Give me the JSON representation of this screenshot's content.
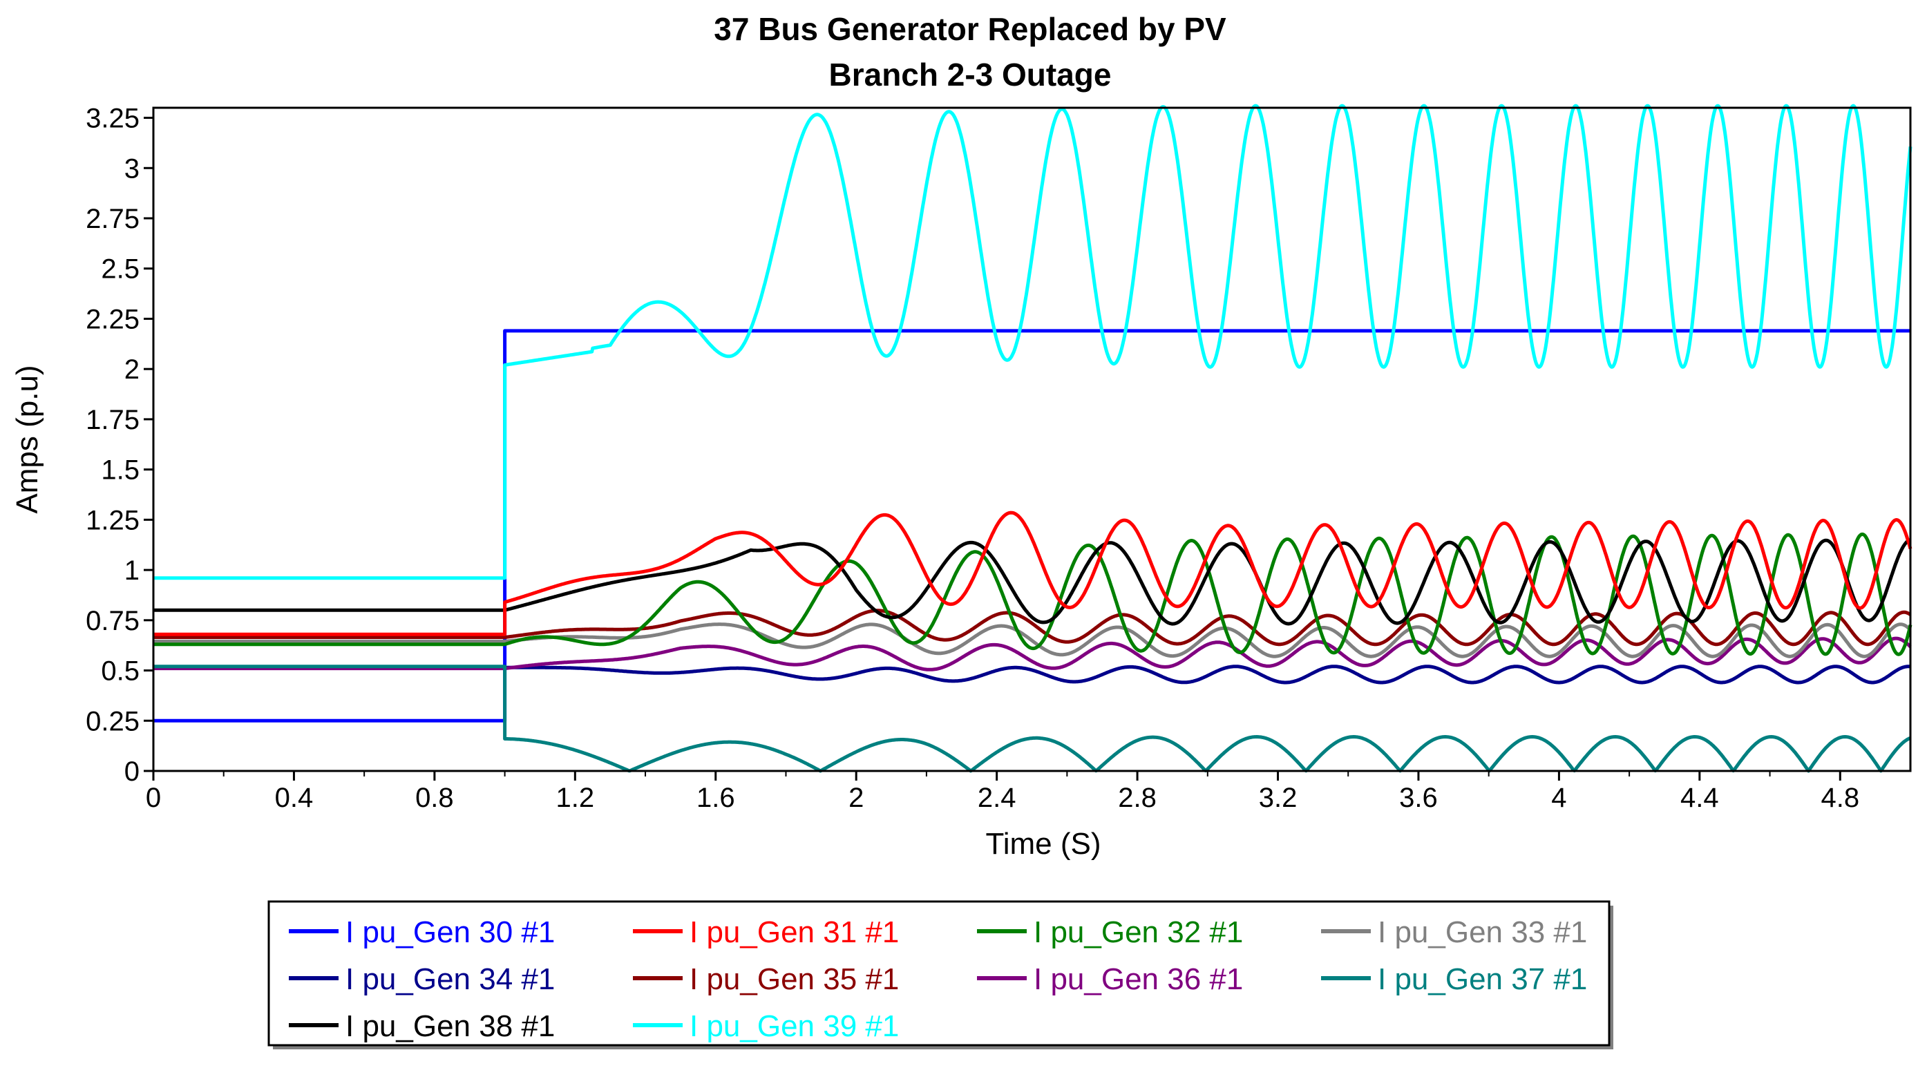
{
  "chart_data": {
    "type": "line",
    "title": [
      "37 Bus Generator Replaced by PV",
      "Branch 2-3 Outage"
    ],
    "xlabel": "Time (S)",
    "ylabel": "Amps (p.u)",
    "xlim": [
      0,
      5
    ],
    "ylim": [
      0,
      3.3
    ],
    "xticks": [
      0,
      0.4,
      0.8,
      1.2,
      1.6,
      2,
      2.4,
      2.8,
      3.2,
      3.6,
      4,
      4.4,
      4.8
    ],
    "xtick_labels": [
      "0",
      "0.4",
      "0.8",
      "1.2",
      "1.6",
      "2",
      "2.4",
      "2.8",
      "3.2",
      "3.6",
      "4",
      "4.4",
      "4.8"
    ],
    "yticks": [
      0,
      0.25,
      0.5,
      0.75,
      1,
      1.25,
      1.5,
      1.75,
      2,
      2.25,
      2.5,
      2.75,
      3,
      3.25
    ],
    "ytick_labels": [
      "0",
      "0.25",
      "0.5",
      "0.75",
      "1",
      "1.25",
      "1.5",
      "1.75",
      "2",
      "2.25",
      "2.5",
      "2.75",
      "3",
      "3.25"
    ],
    "grid": false,
    "legend_position": "bottom",
    "disturbance_time": 1.0,
    "series": [
      {
        "name": "I pu_Gen 30 #1",
        "color": "#0000FF",
        "pre": 0.25,
        "post": 2.19,
        "model": "step"
      },
      {
        "name": "I pu_Gen 31 #1",
        "color": "#FF0000",
        "pre": 0.68,
        "post": 0.84,
        "model": "osc",
        "base_t": [
          1.0,
          1.6,
          2.0,
          3.0,
          5.0
        ],
        "base_v": [
          0.84,
          1.12,
          1.07,
          1.02,
          1.03
        ],
        "amp_t": [
          1.0,
          1.6,
          2.0,
          2.4,
          3.0,
          5.0
        ],
        "amp_v": [
          0.0,
          0.05,
          0.2,
          0.24,
          0.2,
          0.22
        ],
        "freq_t": [
          1.0,
          2.0,
          3.0,
          5.0
        ],
        "freq_v": [
          1.5,
          2.5,
          3.5,
          4.9
        ],
        "phase": 0.3
      },
      {
        "name": "I pu_Gen 32 #1",
        "color": "#008000",
        "pre": 0.63,
        "post": 0.63,
        "model": "osc",
        "base_t": [
          1.0,
          1.5,
          2.0,
          3.0,
          5.0
        ],
        "base_v": [
          0.63,
          0.78,
          0.85,
          0.87,
          0.88
        ],
        "amp_t": [
          1.0,
          1.5,
          2.0,
          2.5,
          3.0,
          5.0
        ],
        "amp_v": [
          0.0,
          0.15,
          0.2,
          0.25,
          0.28,
          0.3
        ],
        "freq_t": [
          1.0,
          2.0,
          3.0,
          5.0
        ],
        "freq_v": [
          1.4,
          2.6,
          3.6,
          4.9
        ],
        "phase": 2.0
      },
      {
        "name": "I pu_Gen 33 #1",
        "color": "#808080",
        "pre": 0.645,
        "post": 0.645,
        "model": "osc",
        "base_t": [
          1.0,
          1.5,
          2.0,
          3.0,
          5.0
        ],
        "base_v": [
          0.645,
          0.7,
          0.66,
          0.64,
          0.65
        ],
        "amp_t": [
          1.0,
          1.5,
          2.0,
          3.0,
          5.0
        ],
        "amp_v": [
          0.0,
          0.03,
          0.07,
          0.07,
          0.08
        ],
        "freq_t": [
          1.0,
          2.0,
          3.0,
          5.0
        ],
        "freq_v": [
          1.4,
          2.5,
          3.4,
          4.9
        ],
        "phase": 1.2
      },
      {
        "name": "I pu_Gen 34 #1",
        "color": "#00008B",
        "pre": 0.515,
        "post": 0.515,
        "model": "osc",
        "base_t": [
          1.0,
          2.0,
          3.0,
          5.0
        ],
        "base_v": [
          0.515,
          0.48,
          0.48,
          0.48
        ],
        "amp_t": [
          1.0,
          2.0,
          3.0,
          5.0
        ],
        "amp_v": [
          0.0,
          0.03,
          0.04,
          0.04
        ],
        "freq_t": [
          1.0,
          2.0,
          3.0,
          5.0
        ],
        "freq_v": [
          1.4,
          2.5,
          3.4,
          4.9
        ],
        "phase": 0.5
      },
      {
        "name": "I pu_Gen 35 #1",
        "color": "#8B0000",
        "pre": 0.665,
        "post": 0.665,
        "model": "osc",
        "base_t": [
          1.0,
          1.5,
          2.0,
          3.0,
          5.0
        ],
        "base_v": [
          0.665,
          0.75,
          0.73,
          0.7,
          0.71
        ],
        "amp_t": [
          1.0,
          1.5,
          2.0,
          3.0,
          5.0
        ],
        "amp_v": [
          0.0,
          0.03,
          0.07,
          0.07,
          0.08
        ],
        "freq_t": [
          1.0,
          2.0,
          3.0,
          5.0
        ],
        "freq_v": [
          1.4,
          2.5,
          3.4,
          4.9
        ],
        "phase": 0.9
      },
      {
        "name": "I pu_Gen 36 #1",
        "color": "#800080",
        "pre": 0.51,
        "post": 0.51,
        "model": "osc",
        "base_t": [
          1.0,
          1.5,
          2.0,
          3.0,
          5.0
        ],
        "base_v": [
          0.51,
          0.6,
          0.56,
          0.58,
          0.6
        ],
        "amp_t": [
          1.0,
          1.5,
          2.0,
          3.0,
          5.0
        ],
        "amp_v": [
          0.0,
          0.02,
          0.06,
          0.06,
          0.06
        ],
        "freq_t": [
          1.0,
          2.0,
          3.0,
          5.0
        ],
        "freq_v": [
          1.4,
          2.5,
          3.4,
          4.9
        ],
        "phase": 1.6
      },
      {
        "name": "I pu_Gen 37 #1",
        "color": "#008080",
        "pre": 0.52,
        "post": 0.16,
        "model": "abs",
        "amp_t": [
          1.0,
          1.8,
          2.2,
          3.0,
          5.0
        ],
        "amp_v": [
          0.16,
          0.14,
          0.16,
          0.17,
          0.17
        ],
        "freq_t": [
          1.0,
          2.0,
          3.0,
          5.0
        ],
        "freq_v": [
          0.62,
          1.1,
          1.7,
          2.5
        ],
        "phase": 1.5707963
      },
      {
        "name": "I pu_Gen 38 #1",
        "color": "#000000",
        "pre": 0.8,
        "post": 0.8,
        "model": "osc",
        "base_t": [
          1.0,
          1.7,
          2.0,
          3.0,
          5.0
        ],
        "base_v": [
          0.8,
          1.1,
          0.95,
          0.93,
          0.95
        ],
        "amp_t": [
          1.0,
          1.7,
          2.0,
          2.5,
          3.0,
          5.0
        ],
        "amp_v": [
          0.0,
          0.03,
          0.18,
          0.2,
          0.2,
          0.2
        ],
        "freq_t": [
          1.0,
          2.0,
          3.0,
          5.0
        ],
        "freq_v": [
          0.9,
          2.0,
          3.0,
          4.2
        ],
        "phase": 0.6
      },
      {
        "name": "I pu_Gen 39 #1",
        "color": "#00FFFF",
        "pre": 0.96,
        "post": 2.02,
        "model": "osc",
        "base_t": [
          1.0,
          1.3,
          1.7,
          2.0,
          3.0,
          5.0
        ],
        "base_v": [
          2.02,
          2.1,
          2.66,
          2.67,
          2.66,
          2.66
        ],
        "amp_t": [
          1.0,
          1.3,
          1.7,
          2.0,
          3.0,
          5.0
        ],
        "amp_v": [
          0.0,
          0.02,
          0.6,
          0.6,
          0.65,
          0.65
        ],
        "freq_t": [
          1.0,
          1.5,
          2.0,
          2.5,
          3.0,
          4.0,
          5.0
        ],
        "freq_v": [
          0.9,
          1.3,
          2.6,
          3.2,
          3.8,
          4.8,
          5.4
        ],
        "phase": 0.0,
        "cut_t": 1.25
      }
    ]
  }
}
